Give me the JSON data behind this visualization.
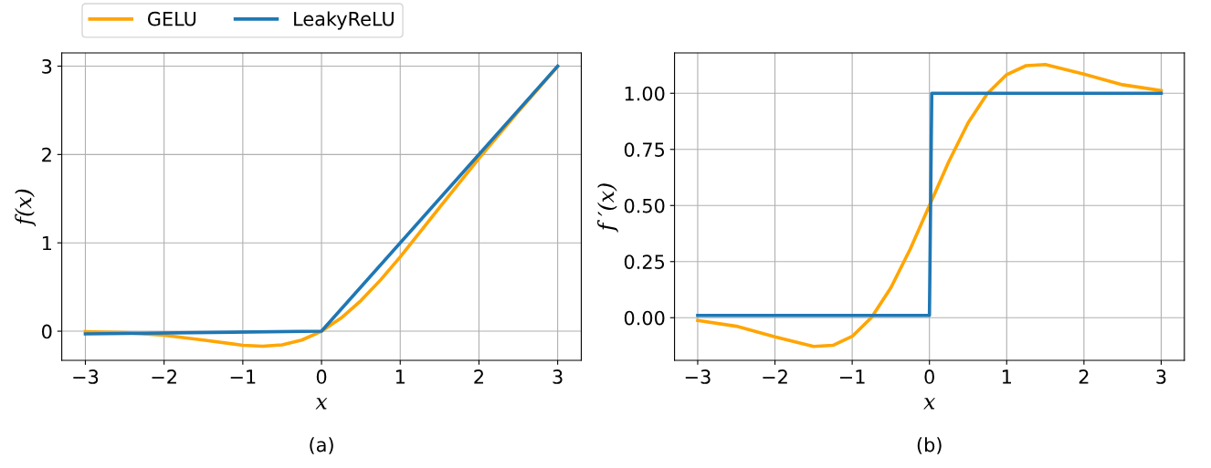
{
  "chart_data": [
    {
      "type": "line",
      "xlabel": "x",
      "ylabel": "f(x)",
      "xlim": [
        -3.3,
        3.3
      ],
      "ylim": [
        -0.33,
        3.15
      ],
      "xticks": [
        {
          "value": -3,
          "label": "−3"
        },
        {
          "value": -2,
          "label": "−2"
        },
        {
          "value": -1,
          "label": "−1"
        },
        0,
        1,
        2,
        3
      ],
      "yticks": [
        0,
        1,
        2,
        3
      ],
      "grid": true,
      "legend": "top left",
      "annotations": [
        "(a)"
      ],
      "series": [
        {
          "name": "GELU",
          "color": "#ffa500",
          "x": [
            -3,
            -2.5,
            -2,
            -1.5,
            -1,
            -0.75,
            -0.5,
            -0.25,
            0,
            0.25,
            0.5,
            0.75,
            1,
            1.5,
            2,
            2.5,
            3
          ],
          "values": [
            -0.004,
            -0.016,
            -0.046,
            -0.1,
            -0.159,
            -0.17,
            -0.154,
            -0.1,
            0,
            0.15,
            0.346,
            0.58,
            0.841,
            1.4,
            1.955,
            2.485,
            2.996
          ]
        },
        {
          "name": "LeakyReLU",
          "color": "#1f77b4",
          "x": [
            -3,
            0,
            3
          ],
          "values": [
            -0.03,
            0,
            3
          ]
        }
      ]
    },
    {
      "type": "line",
      "xlabel": "x",
      "ylabel": "f ′(x)",
      "xlim": [
        -3.3,
        3.3
      ],
      "ylim": [
        -0.19,
        1.18
      ],
      "xticks": [
        {
          "value": -3,
          "label": "−3"
        },
        {
          "value": -2,
          "label": "−2"
        },
        {
          "value": -1,
          "label": "−1"
        },
        0,
        1,
        2,
        3
      ],
      "yticks": [
        {
          "value": 0,
          "label": "0.00"
        },
        {
          "value": 0.25,
          "label": "0.25"
        },
        {
          "value": 0.5,
          "label": "0.50"
        },
        {
          "value": 0.75,
          "label": "0.75"
        },
        {
          "value": 1,
          "label": "1.00"
        }
      ],
      "grid": true,
      "annotations": [
        "(b)"
      ],
      "series": [
        {
          "color": "#ffa500",
          "x": [
            -3,
            -2.5,
            -2,
            -1.5,
            -1.25,
            -1,
            -0.75,
            -0.5,
            -0.25,
            0,
            0.25,
            0.5,
            0.75,
            1,
            1.25,
            1.5,
            2,
            2.5,
            3
          ],
          "values": [
            -0.012,
            -0.038,
            -0.085,
            -0.128,
            -0.123,
            -0.083,
            0.001,
            0.133,
            0.305,
            0.5,
            0.695,
            0.868,
            0.999,
            1.083,
            1.123,
            1.128,
            1.085,
            1.038,
            1.012
          ]
        },
        {
          "color": "#1f77b4",
          "x": [
            -3,
            0,
            0.03,
            3
          ],
          "values": [
            0.01,
            0.01,
            1,
            1
          ]
        }
      ]
    }
  ]
}
